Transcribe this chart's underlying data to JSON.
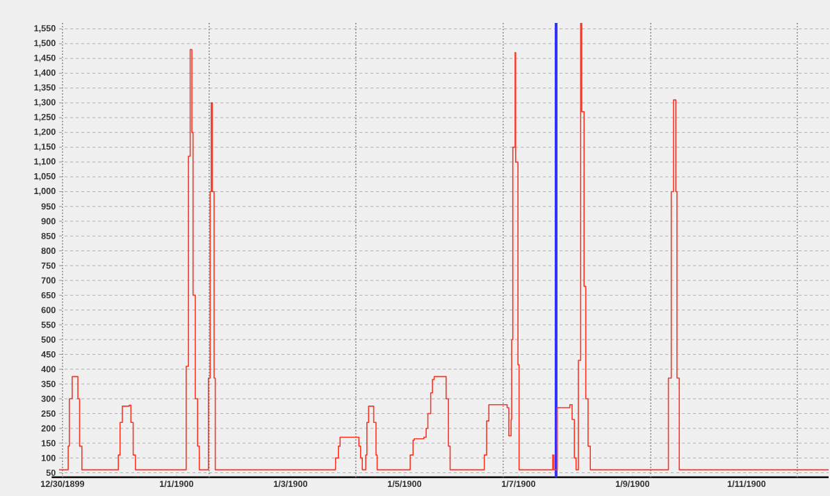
{
  "chart_data": {
    "type": "step",
    "color": "#ff3322",
    "x": [
      "1899-12-29T22:34",
      "1899-12-30T02:24",
      "1899-12-30T02:53",
      "1899-12-30T04:05",
      "1899-12-30T05:46",
      "1899-12-30T06:29",
      "1899-12-30T07:12",
      "1899-12-30T08:10",
      "1899-12-30T23:31",
      "1899-12-31T00:14",
      "1899-12-31T01:12",
      "1899-12-31T04:05",
      "1899-12-31T04:48",
      "1899-12-31T05:46",
      "1899-12-31T06:43",
      "1900-01-01T04:05",
      "1900-01-01T05:02",
      "1900-01-01T05:46",
      "1900-01-01T06:29",
      "1900-01-01T06:58",
      "1900-01-01T07:55",
      "1900-01-01T08:53",
      "1900-01-01T09:36",
      "1900-01-01T13:26",
      "1900-01-01T14:10",
      "1900-01-01T14:38",
      "1900-01-01T15:07",
      "1900-01-01T15:50",
      "1900-01-01T16:19",
      "1900-01-03T18:58",
      "1900-01-03T20:10",
      "1900-01-03T20:53",
      "1900-01-04T03:50",
      "1900-01-04T04:48",
      "1900-01-04T05:31",
      "1900-01-04T06:14",
      "1900-01-04T07:41",
      "1900-01-04T08:10",
      "1900-01-04T08:53",
      "1900-01-04T10:34",
      "1900-01-04T11:02",
      "1900-01-04T12:00",
      "1900-01-04T12:29",
      "1900-01-05T02:24",
      "1900-01-05T03:36",
      "1900-01-05T04:05",
      "1900-01-05T08:10",
      "1900-01-05T09:07",
      "1900-01-05T09:50",
      "1900-01-05T11:02",
      "1900-01-05T11:46",
      "1900-01-05T12:29",
      "1900-01-05T16:05",
      "1900-01-05T17:31",
      "1900-01-05T18:29",
      "1900-01-05T19:12",
      "1900-01-06T09:36",
      "1900-01-06T10:34",
      "1900-01-06T11:31",
      "1900-01-06T17:46",
      "1900-01-06T19:12",
      "1900-01-06T19:55",
      "1900-01-06T20:53",
      "1900-01-06T21:07",
      "1900-01-06T21:36",
      "1900-01-06T22:34",
      "1900-01-06T22:48",
      "1900-01-06T23:46",
      "1900-01-07T00:14",
      "1900-01-07T14:24",
      "1900-01-07T14:53",
      "1900-01-07T16:19",
      "1900-01-07T21:36",
      "1900-01-07T22:34",
      "1900-01-07T23:31",
      "1900-01-08T00:14",
      "1900-01-08T01:12",
      "1900-01-08T02:10",
      "1900-01-08T02:38",
      "1900-01-08T03:36",
      "1900-01-08T04:19",
      "1900-01-08T05:17",
      "1900-01-08T06:14",
      "1900-01-09T15:07",
      "1900-01-09T16:19",
      "1900-01-09T17:17",
      "1900-01-09T18:14",
      "1900-01-09T18:43",
      "1900-01-09T19:41",
      "1900-01-12T10:34"
    ],
    "values": [
      60,
      140,
      300,
      375,
      375,
      300,
      140,
      60,
      110,
      220,
      275,
      278,
      220,
      110,
      60,
      410,
      1120,
      1480,
      1200,
      650,
      300,
      140,
      60,
      370,
      1000,
      1300,
      1000,
      370,
      60,
      100,
      140,
      170,
      170,
      140,
      100,
      60,
      110,
      220,
      275,
      275,
      220,
      110,
      60,
      110,
      160,
      165,
      170,
      200,
      250,
      320,
      365,
      375,
      375,
      300,
      140,
      60,
      110,
      225,
      280,
      280,
      270,
      175,
      230,
      500,
      1150,
      1470,
      1100,
      415,
      60,
      110,
      60,
      270,
      280,
      230,
      100,
      60,
      430,
      1570,
      1270,
      680,
      300,
      140,
      60,
      370,
      1000,
      1310,
      1000,
      370,
      60,
      60
    ],
    "xlim": [
      "1899-12-29T22:34",
      "1900-01-12T10:34"
    ],
    "ylim": [
      35,
      1570
    ],
    "xticks": [
      {
        "value": "1899-12-30",
        "label": "12/30/1899"
      },
      {
        "value": "1900-01-01",
        "label": "1/1/1900"
      },
      {
        "value": "1900-01-03",
        "label": "1/3/1900"
      },
      {
        "value": "1900-01-05",
        "label": "1/5/1900"
      },
      {
        "value": "1900-01-07",
        "label": "1/7/1900"
      },
      {
        "value": "1900-01-09",
        "label": "1/9/1900"
      },
      {
        "value": "1900-01-11",
        "label": "1/11/1900"
      }
    ],
    "yticks": [
      50,
      100,
      150,
      200,
      250,
      300,
      350,
      400,
      450,
      500,
      550,
      600,
      650,
      700,
      750,
      800,
      850,
      900,
      950,
      {
        "value": 1000,
        "label": "1,000"
      },
      {
        "value": 1050,
        "label": "1,050"
      },
      {
        "value": 1100,
        "label": "1,100"
      },
      {
        "value": 1150,
        "label": "1,150"
      },
      {
        "value": 1200,
        "label": "1,200"
      },
      {
        "value": 1250,
        "label": "1,250"
      },
      {
        "value": 1300,
        "label": "1,300"
      },
      {
        "value": 1350,
        "label": "1,350"
      },
      {
        "value": 1400,
        "label": "1,400"
      },
      {
        "value": 1450,
        "label": "1,450"
      },
      {
        "value": 1500,
        "label": "1,500"
      },
      {
        "value": 1550,
        "label": "1,550"
      }
    ],
    "grid": "y",
    "line_style": "solid",
    "marker": "none",
    "ref_lines": [
      {
        "axis": "x",
        "value": "1899-12-30",
        "color": "#888888",
        "line_style": "dotted"
      },
      {
        "axis": "x",
        "value": "1900-01-01T13:45",
        "color": "#888888",
        "line_style": "dotted"
      },
      {
        "axis": "x",
        "value": "1900-01-04T03:30",
        "color": "#888888",
        "line_style": "dotted"
      },
      {
        "axis": "x",
        "value": "1900-01-06T17:31",
        "color": "#888888",
        "line_style": "dotted"
      },
      {
        "axis": "x",
        "value": "1900-01-09T07:41",
        "color": "#888888",
        "line_style": "dotted"
      },
      {
        "axis": "x",
        "value": "1900-01-11T21:22",
        "color": "#888888",
        "line_style": "dotted"
      },
      {
        "axis": "x",
        "value": "1900-01-07T15:50",
        "color": "#3333ff",
        "line_style": "solid"
      }
    ]
  }
}
